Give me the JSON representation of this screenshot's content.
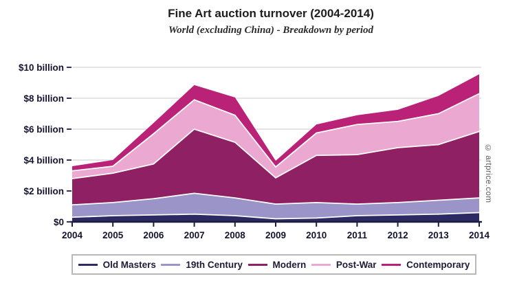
{
  "header": {
    "title": "Fine Art auction turnover (2004-2014)",
    "subtitle": "World (excluding China) - Breakdown by period"
  },
  "watermark": "© artprice.com",
  "styles": {
    "grid_color": "#c9c9c9",
    "axis_color": "#1d1d3d",
    "tick_color": "#33335e",
    "label_color": "#14142e",
    "band_outline": "#ffffff",
    "legend_border": "#b8b8b8",
    "watermark_color": "#5a5a5a"
  },
  "chart_data": {
    "type": "area",
    "stacked": true,
    "title": "Fine Art auction turnover (2004-2014)",
    "subtitle": "World (excluding China) - Breakdown by period",
    "unit": "USD billions",
    "categories": [
      "2004",
      "2005",
      "2006",
      "2007",
      "2008",
      "2009",
      "2010",
      "2011",
      "2012",
      "2013",
      "2014"
    ],
    "ylim": [
      0,
      10
    ],
    "grid": true,
    "legend_position": "bottom",
    "y_ticks": [
      {
        "value": 0,
        "label": "$0"
      },
      {
        "value": 2,
        "label": "$2 billion"
      },
      {
        "value": 4,
        "label": "$4 billion"
      },
      {
        "value": 6,
        "label": "$6 billion"
      },
      {
        "value": 8,
        "label": "$8 billion"
      },
      {
        "value": 10,
        "label": "$10 billion"
      }
    ],
    "series": [
      {
        "name": "Old Masters",
        "color": "#2b2a63",
        "values": [
          0.3,
          0.4,
          0.45,
          0.5,
          0.4,
          0.2,
          0.25,
          0.4,
          0.45,
          0.5,
          0.6
        ]
      },
      {
        "name": "19th Century",
        "color": "#9b94c9",
        "values": [
          0.8,
          0.85,
          1.05,
          1.35,
          1.15,
          0.95,
          1.0,
          0.75,
          0.8,
          0.9,
          0.95
        ]
      },
      {
        "name": "Modern",
        "color": "#8e2063",
        "values": [
          1.7,
          1.9,
          2.25,
          4.15,
          3.6,
          1.7,
          3.05,
          3.2,
          3.55,
          3.6,
          4.3
        ]
      },
      {
        "name": "Post-War",
        "color": "#eba9d2",
        "values": [
          0.5,
          0.45,
          1.95,
          1.9,
          1.75,
          0.7,
          1.45,
          1.95,
          1.7,
          2.0,
          2.45
        ]
      },
      {
        "name": "Contemporary",
        "color": "#ba2277",
        "values": [
          0.3,
          0.4,
          0.7,
          0.95,
          1.15,
          0.4,
          0.55,
          0.6,
          0.75,
          1.15,
          1.25
        ]
      }
    ],
    "stacked_totals": [
      3.6,
      4.0,
      6.4,
      8.85,
      8.05,
      3.95,
      6.3,
      6.9,
      7.25,
      8.15,
      9.55
    ]
  }
}
